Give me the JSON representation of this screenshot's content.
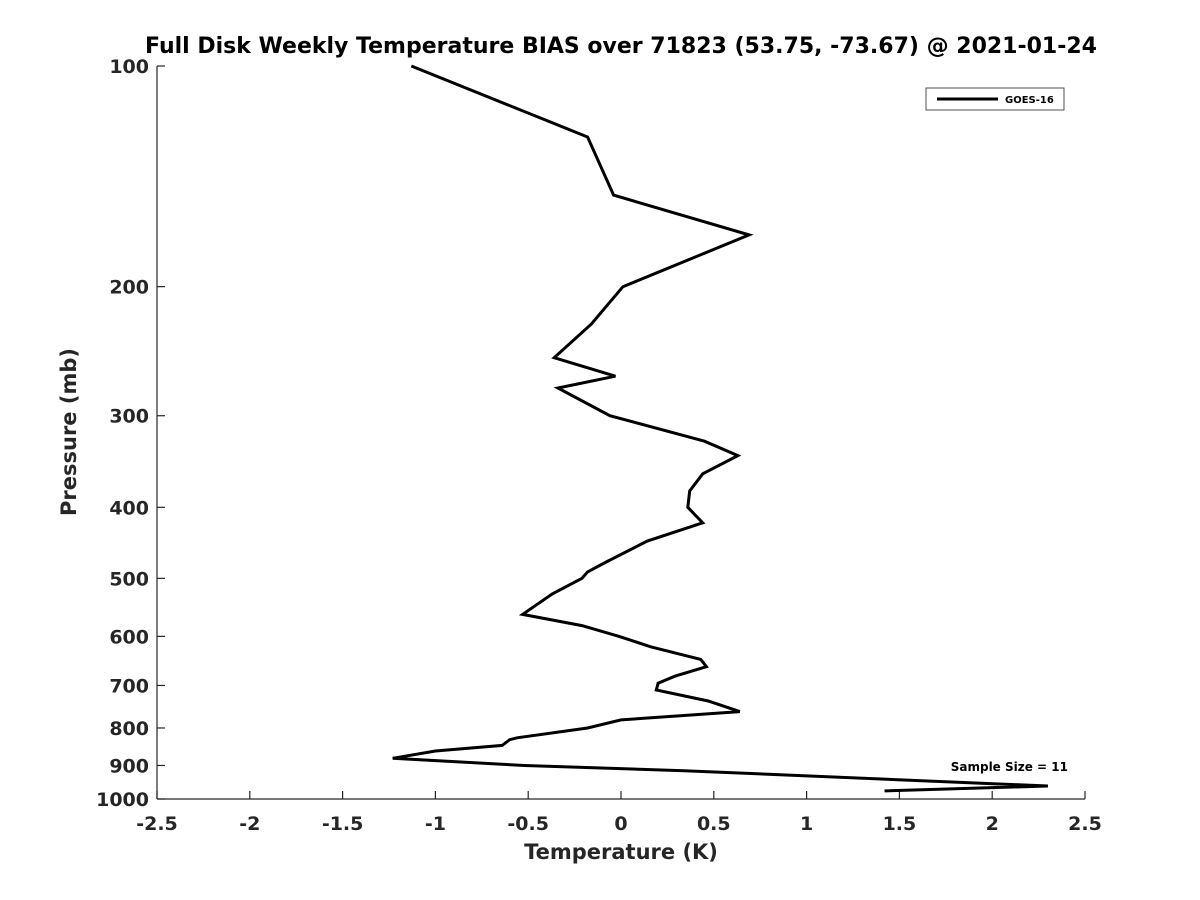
{
  "chart_data": {
    "type": "line",
    "title": "Full Disk Weekly Temperature BIAS over 71823 (53.75, -73.67) @ 2021-01-24",
    "xlabel": "Temperature (K)",
    "ylabel": "Pressure (mb)",
    "xlim": [
      -2.5,
      2.5
    ],
    "ylim": [
      1000,
      100
    ],
    "yscale": "log",
    "y_reversed": true,
    "grid": false,
    "legend_position": "top-right",
    "x_ticks": [
      -2.5,
      -2,
      -1.5,
      -1,
      -0.5,
      0,
      0.5,
      1,
      1.5,
      2,
      2.5
    ],
    "x_tick_labels": [
      "-2.5",
      "-2",
      "-1.5",
      "-1",
      "-0.5",
      "0",
      "0.5",
      "1",
      "1.5",
      "2",
      "2.5"
    ],
    "y_ticks": [
      100,
      200,
      300,
      400,
      500,
      600,
      700,
      800,
      900,
      1000
    ],
    "y_tick_labels": [
      "100",
      "200",
      "300",
      "400",
      "500",
      "600",
      "700",
      "800",
      "900",
      "1000"
    ],
    "series": [
      {
        "name": "GOES-16",
        "color": "#000000",
        "points": [
          {
            "x": -1.13,
            "y": 100
          },
          {
            "x": -0.18,
            "y": 125
          },
          {
            "x": -0.04,
            "y": 150
          },
          {
            "x": 0.69,
            "y": 170
          },
          {
            "x": 0.01,
            "y": 200
          },
          {
            "x": -0.16,
            "y": 225
          },
          {
            "x": -0.36,
            "y": 250
          },
          {
            "x": -0.03,
            "y": 265
          },
          {
            "x": -0.34,
            "y": 275
          },
          {
            "x": -0.06,
            "y": 300
          },
          {
            "x": 0.45,
            "y": 325
          },
          {
            "x": 0.63,
            "y": 340
          },
          {
            "x": 0.44,
            "y": 360
          },
          {
            "x": 0.37,
            "y": 380
          },
          {
            "x": 0.36,
            "y": 400
          },
          {
            "x": 0.44,
            "y": 420
          },
          {
            "x": 0.14,
            "y": 445
          },
          {
            "x": -0.08,
            "y": 475
          },
          {
            "x": -0.18,
            "y": 490
          },
          {
            "x": -0.21,
            "y": 500
          },
          {
            "x": -0.37,
            "y": 525
          },
          {
            "x": -0.53,
            "y": 560
          },
          {
            "x": -0.21,
            "y": 580
          },
          {
            "x": -0.01,
            "y": 600
          },
          {
            "x": 0.16,
            "y": 620
          },
          {
            "x": 0.43,
            "y": 645
          },
          {
            "x": 0.46,
            "y": 660
          },
          {
            "x": 0.29,
            "y": 680
          },
          {
            "x": 0.2,
            "y": 695
          },
          {
            "x": 0.19,
            "y": 710
          },
          {
            "x": 0.47,
            "y": 735
          },
          {
            "x": 0.64,
            "y": 760
          },
          {
            "x": 0.0,
            "y": 780
          },
          {
            "x": -0.18,
            "y": 800
          },
          {
            "x": -0.56,
            "y": 825
          },
          {
            "x": -0.6,
            "y": 830
          },
          {
            "x": -0.64,
            "y": 845
          },
          {
            "x": -1.0,
            "y": 860
          },
          {
            "x": -1.23,
            "y": 880
          },
          {
            "x": -0.52,
            "y": 900
          },
          {
            "x": 0.34,
            "y": 915
          },
          {
            "x": 2.3,
            "y": 960
          },
          {
            "x": 1.42,
            "y": 975
          }
        ]
      }
    ],
    "annotations": [
      {
        "text": "Sample Size = 11"
      }
    ]
  }
}
